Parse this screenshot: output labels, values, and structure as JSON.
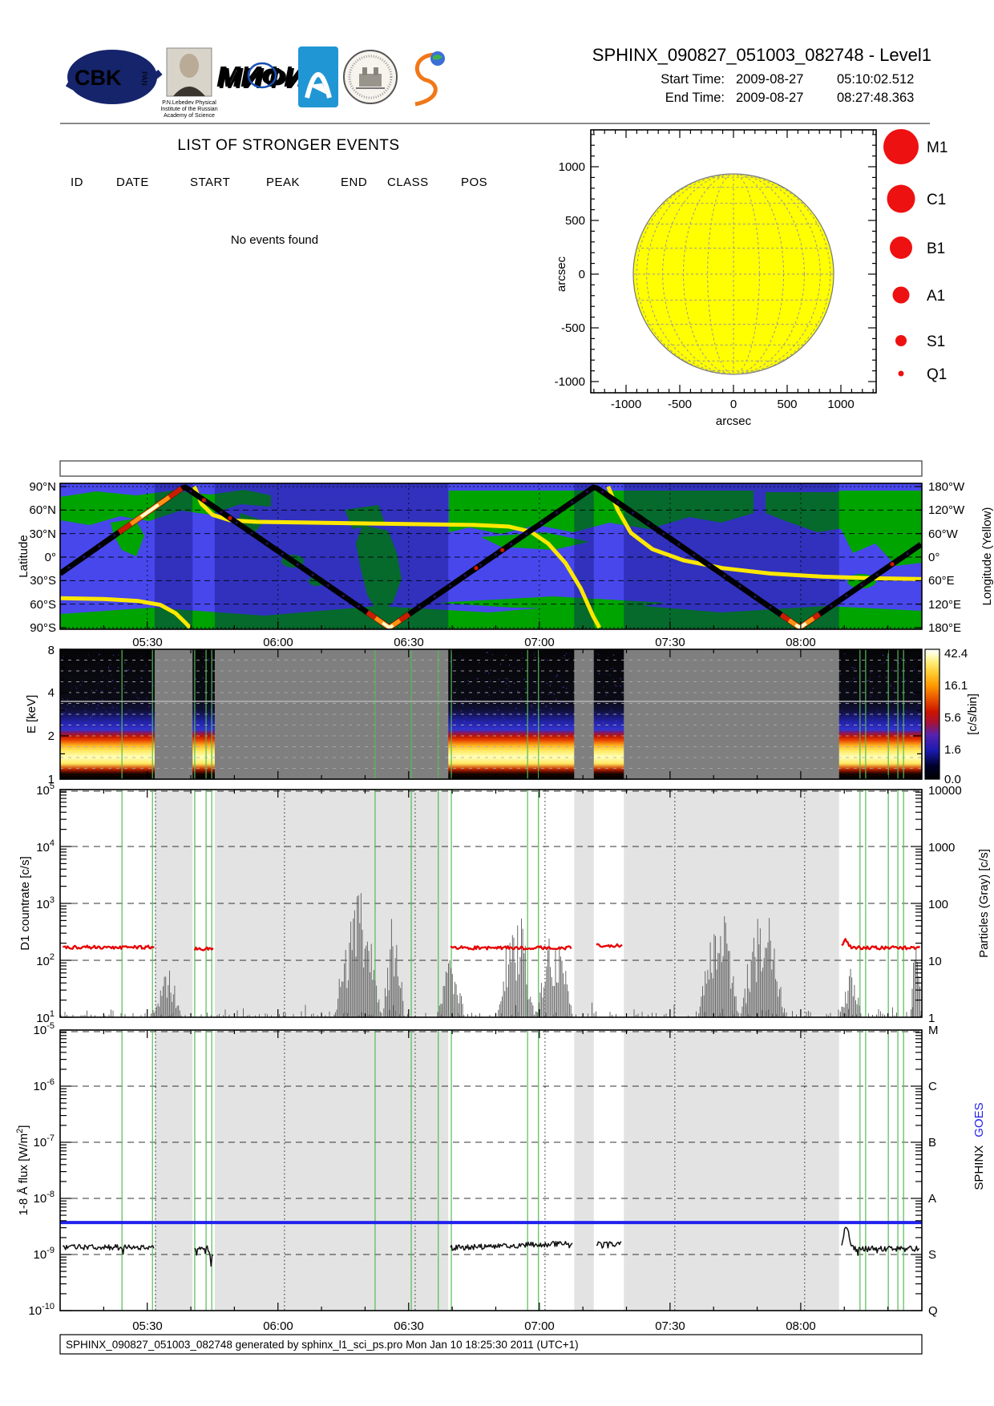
{
  "header": {
    "title": "SPHINX_090827_051003_082748 - Level1",
    "start_label": "Start Time:",
    "start_date": "2009-08-27",
    "start_time": "05:10:02.512",
    "end_label": "End Time:",
    "end_date": "2009-08-27",
    "end_time": "08:27:48.363",
    "logos": {
      "cbk_text": "CBK",
      "cbk_sub": "PAN",
      "lebedev_caption_1": "P.N.Lebedev Physical",
      "lebedev_caption_2": "Institute of the Russian",
      "lebedev_caption_3": "Academy of Science",
      "mephi_text": "МИФИ"
    }
  },
  "events": {
    "title": "LIST OF STRONGER EVENTS",
    "columns": [
      "ID",
      "DATE",
      "START",
      "PEAK",
      "END",
      "CLASS",
      "POS"
    ],
    "empty_message": "No events found",
    "rows": []
  },
  "sun": {
    "xticks": [
      "-1000",
      "-500",
      "0",
      "500",
      "1000"
    ],
    "yticks": [
      "1000",
      "500",
      "0",
      "-500",
      "-1000"
    ],
    "xlabel": "arcsec",
    "ylabel": "arcsec",
    "disk_color": "#ffff00",
    "legend_color": "#ee1111",
    "legend": [
      {
        "label": "M1",
        "r": 22
      },
      {
        "label": "C1",
        "r": 17.5
      },
      {
        "label": "B1",
        "r": 14
      },
      {
        "label": "A1",
        "r": 10.5
      },
      {
        "label": "S1",
        "r": 7
      },
      {
        "label": "Q1",
        "r": 3.5
      }
    ]
  },
  "map": {
    "ylabel_left": "Latitude",
    "ylabel_right": "Longitude (Yellow)",
    "lat_ticks": [
      "90°N",
      "60°N",
      "30°N",
      "0°",
      "30°S",
      "60°S",
      "90°S"
    ],
    "lon_ticks": [
      "180°W",
      "120°W",
      "60°W",
      "0°",
      "60°E",
      "120°E",
      "180°E"
    ]
  },
  "time_axis": {
    "tick_labels": [
      "05:30",
      "06:00",
      "06:30",
      "07:00",
      "07:30",
      "08:00"
    ],
    "tick_minutes": [
      20,
      50,
      80,
      110,
      140,
      170
    ],
    "start_offset_min": 0,
    "end_offset_min": 197.8,
    "eclipse_intervals_min": [
      [
        21.7,
        30.4
      ],
      [
        35.5,
        89.1
      ],
      [
        118,
        122.5
      ],
      [
        129.4,
        178.8
      ]
    ],
    "green_lines_min": [
      14.2,
      21.2,
      30.9,
      33.5,
      34.8,
      72.3,
      80.6,
      86.8,
      89.8,
      107.3,
      109.8,
      183.6,
      184.9,
      190.1,
      192.3,
      193.6
    ],
    "dotted_lines_min": [
      21.9,
      51.5,
      81.5,
      111.3,
      141.1,
      170.9
    ]
  },
  "spectrogram": {
    "ylabel": "E [keV]",
    "yticks": [
      "8",
      "4",
      "2",
      "1"
    ],
    "colorbar_ticks": [
      "42.4",
      "16.1",
      "5.6",
      "1.6",
      "0.0"
    ],
    "colorbar_label": "[c/s/bin]"
  },
  "d1": {
    "ylabel": "D1 countrate [c/s]",
    "base": "10",
    "exps": [
      "5",
      "4",
      "3",
      "2",
      "1"
    ],
    "right_label": "Particles (Gray) [c/s]",
    "right_ticks": [
      "10000",
      "1000",
      "100",
      "10",
      "1"
    ]
  },
  "flux": {
    "ylabel_pre": "1-8 Å flux [W/m",
    "ylabel_sup": "2",
    "ylabel_post": "]",
    "base": "10",
    "exps": [
      "-5",
      "-6",
      "-7",
      "-8",
      "-9",
      "-10"
    ],
    "right_ticks": [
      "M",
      "C",
      "B",
      "A",
      "S",
      "Q"
    ],
    "right_label_black": "SPHINX",
    "right_label_blue": "GOES",
    "goes_color": "#2222ee"
  },
  "footer": {
    "text": "SPHINX_090827_051003_082748 generated by sphinx_l1_sci_ps.pro Mon Jan 10 18:25:30 2011 (UTC+1)"
  },
  "chart_data": [
    {
      "id": "solar_disk_events",
      "type": "scatter",
      "title": "",
      "points": [],
      "x_range_arcsec": [
        -1330,
        1330
      ],
      "y_range_arcsec": [
        -1330,
        1330
      ],
      "disk_radius_arcsec": 950,
      "legend_classes": [
        "M1",
        "C1",
        "B1",
        "A1",
        "S1",
        "Q1"
      ]
    },
    {
      "id": "ground_track_latitude",
      "type": "line",
      "x_unit": "minutes since 05:10:02",
      "t": [
        0,
        28.5,
        75.6,
        122.7,
        169.8,
        197.8
      ],
      "lat_deg": [
        -21,
        90,
        -90,
        90,
        -90,
        17
      ],
      "bright_intervals_min": [
        [
          13.5,
          28
        ],
        [
          70.5,
          80.5
        ],
        [
          165.5,
          175
        ]
      ]
    },
    {
      "id": "subsatellite_longitude",
      "type": "line",
      "x_unit": "minutes since 05:10:02",
      "segments": [
        {
          "t": [
            0,
            10,
            18,
            23,
            26.5,
            28.8,
            29.8
          ],
          "lon_deg": [
            105,
            107,
            112,
            122,
            143,
            168,
            180
          ]
        },
        {
          "t": [
            30.8,
            32.5,
            35,
            39,
            45,
            70,
            95,
            103,
            108,
            112,
            116,
            119.5,
            122.3,
            123.8
          ],
          "lon_deg": [
            -180,
            -135,
            -108,
            -94,
            -90,
            -86,
            -82,
            -78,
            -65,
            -35,
            15,
            80,
            150,
            180
          ]
        },
        {
          "t": [
            125.8,
            128,
            131,
            136,
            143,
            152,
            163,
            175,
            187,
            197.8
          ],
          "lon_deg": [
            -180,
            -120,
            -62,
            -20,
            8,
            28,
            42,
            50,
            54,
            56
          ]
        }
      ]
    },
    {
      "id": "spectrogram_blocks",
      "type": "heatmap",
      "y_unit": "keV",
      "y_range": [
        1,
        8
      ],
      "sunlit_intervals_min": [
        [
          0,
          21.7
        ],
        [
          30.4,
          35.5
        ],
        [
          89.1,
          118
        ],
        [
          122.5,
          129.4
        ],
        [
          178.8,
          197.8
        ]
      ],
      "bright_band_keV": [
        1.2,
        1.7
      ],
      "colorbar_range_c_s_bin": [
        0,
        42.4
      ]
    },
    {
      "id": "d1_countrate",
      "type": "line",
      "unit": "c/s",
      "segments": [
        {
          "t0": 0.6,
          "t1": 21.7,
          "log10": 2.23
        },
        {
          "t0": 30.9,
          "t1": 35.2,
          "log10": 2.2
        },
        {
          "t0": 89.6,
          "t1": 117.6,
          "log10": 2.22
        },
        {
          "t0": 123.1,
          "t1": 129,
          "log10": 2.26
        },
        {
          "t0": 179.4,
          "t1": 197.4,
          "log10": 2.22,
          "bump_t": 180.3,
          "bump_log": 0.14
        }
      ],
      "particle_clusters": [
        {
          "t0": 62.6,
          "t1": 74,
          "peak_log": 3.25
        },
        {
          "t0": 74,
          "t1": 79.1,
          "peak_log": 2.9
        },
        {
          "t0": 86.5,
          "t1": 93,
          "peak_log": 2.1
        },
        {
          "t0": 100.3,
          "t1": 109,
          "peak_log": 3.0
        },
        {
          "t0": 109,
          "t1": 117.8,
          "peak_log": 2.6
        },
        {
          "t0": 146.3,
          "t1": 156,
          "peak_log": 3.05
        },
        {
          "t0": 156,
          "t1": 166.5,
          "peak_log": 3.2
        },
        {
          "t0": 178.8,
          "t1": 184,
          "peak_log": 1.9
        },
        {
          "t0": 21,
          "t1": 28,
          "peak_log": 1.9
        },
        {
          "t0": 195,
          "t1": 197.8,
          "peak_log": 2.4
        }
      ]
    },
    {
      "id": "xray_flux_1_8A",
      "type": "line",
      "unit": "W/m2",
      "goes_level_log10": -8.43,
      "segments": [
        {
          "t0": 0.6,
          "t1": 21.7,
          "log10": -8.87
        },
        {
          "t0": 30.9,
          "t1": 35.2,
          "log10": -8.88,
          "dip_t": 34.6,
          "dip_log": 0.2
        },
        {
          "t0": 89.6,
          "t1": 117.6,
          "log10": -8.88,
          "end_log": -8.8
        },
        {
          "t0": 123.1,
          "t1": 129,
          "log10": -8.82
        },
        {
          "t0": 179.4,
          "t1": 197.4,
          "log10": -8.9,
          "bump_t": 180.4,
          "bump_log": 0.38
        }
      ]
    }
  ]
}
